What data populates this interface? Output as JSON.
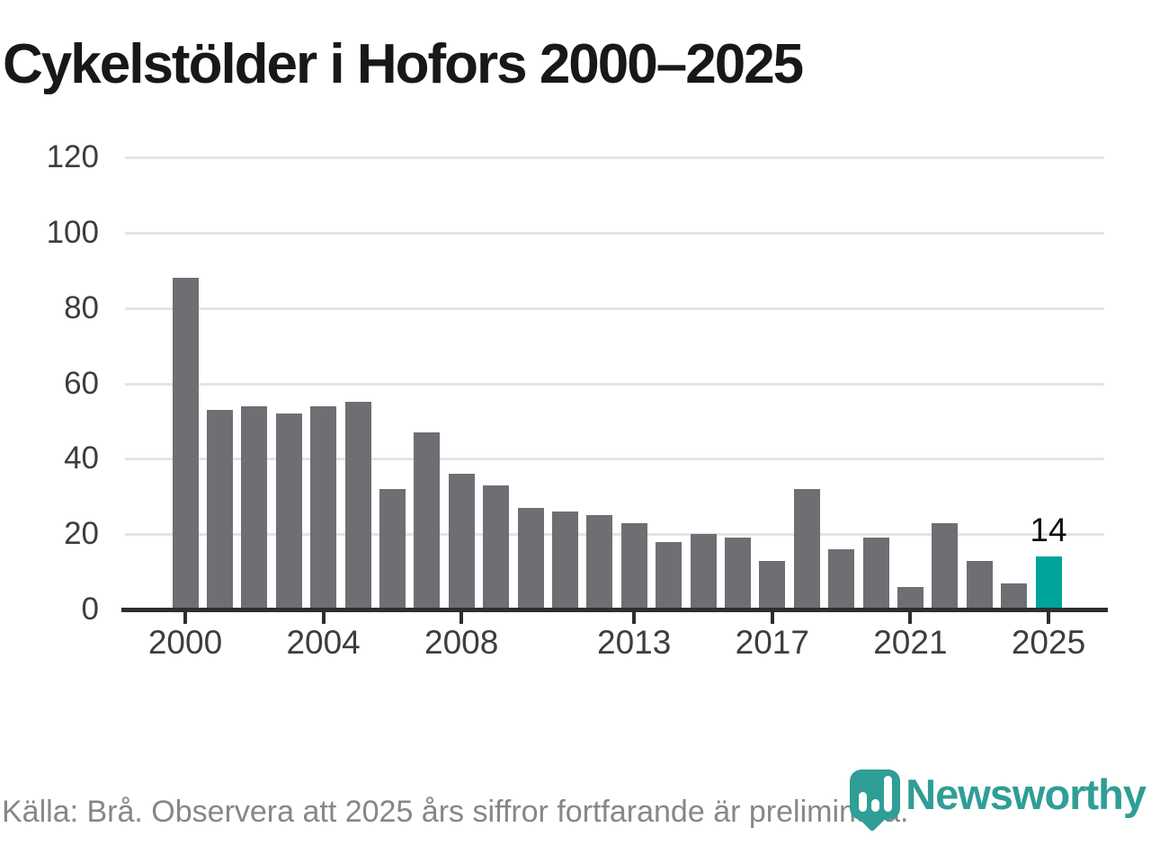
{
  "title": "Cykelstölder i Hofors 2000–2025",
  "footer": {
    "source_note": "Källa: Brå. Observera att 2025 års siffror fortfarande är preliminära."
  },
  "branding": {
    "logo_text": "Newsworthy",
    "logo_icon": "bar-chart-pin-icon",
    "logo_color": "#2f9e96"
  },
  "colors": {
    "bar": "#6e6e73",
    "highlight": "#00a49c",
    "axis": "#2e2e2e",
    "gridline": "#e4e4e4"
  },
  "chart_data": {
    "type": "bar",
    "title": "Cykelstölder i Hofors 2000–2025",
    "xlabel": "",
    "ylabel": "",
    "x": [
      2000,
      2001,
      2002,
      2003,
      2004,
      2005,
      2006,
      2007,
      2008,
      2009,
      2010,
      2011,
      2012,
      2013,
      2014,
      2015,
      2016,
      2017,
      2018,
      2019,
      2020,
      2021,
      2022,
      2023,
      2024,
      2025
    ],
    "values": [
      88,
      53,
      54,
      52,
      54,
      55,
      32,
      47,
      36,
      33,
      27,
      26,
      25,
      23,
      18,
      20,
      19,
      13,
      32,
      16,
      19,
      6,
      23,
      13,
      7,
      14
    ],
    "highlight_x": 2025,
    "value_label": {
      "x": 2025,
      "text": "14"
    },
    "x_ticks": [
      2000,
      2004,
      2008,
      2013,
      2017,
      2021,
      2025
    ],
    "y_ticks": [
      0,
      20,
      40,
      60,
      80,
      100,
      120
    ],
    "ylim": [
      0,
      120
    ],
    "grid": "horizontal",
    "legend": "none"
  }
}
